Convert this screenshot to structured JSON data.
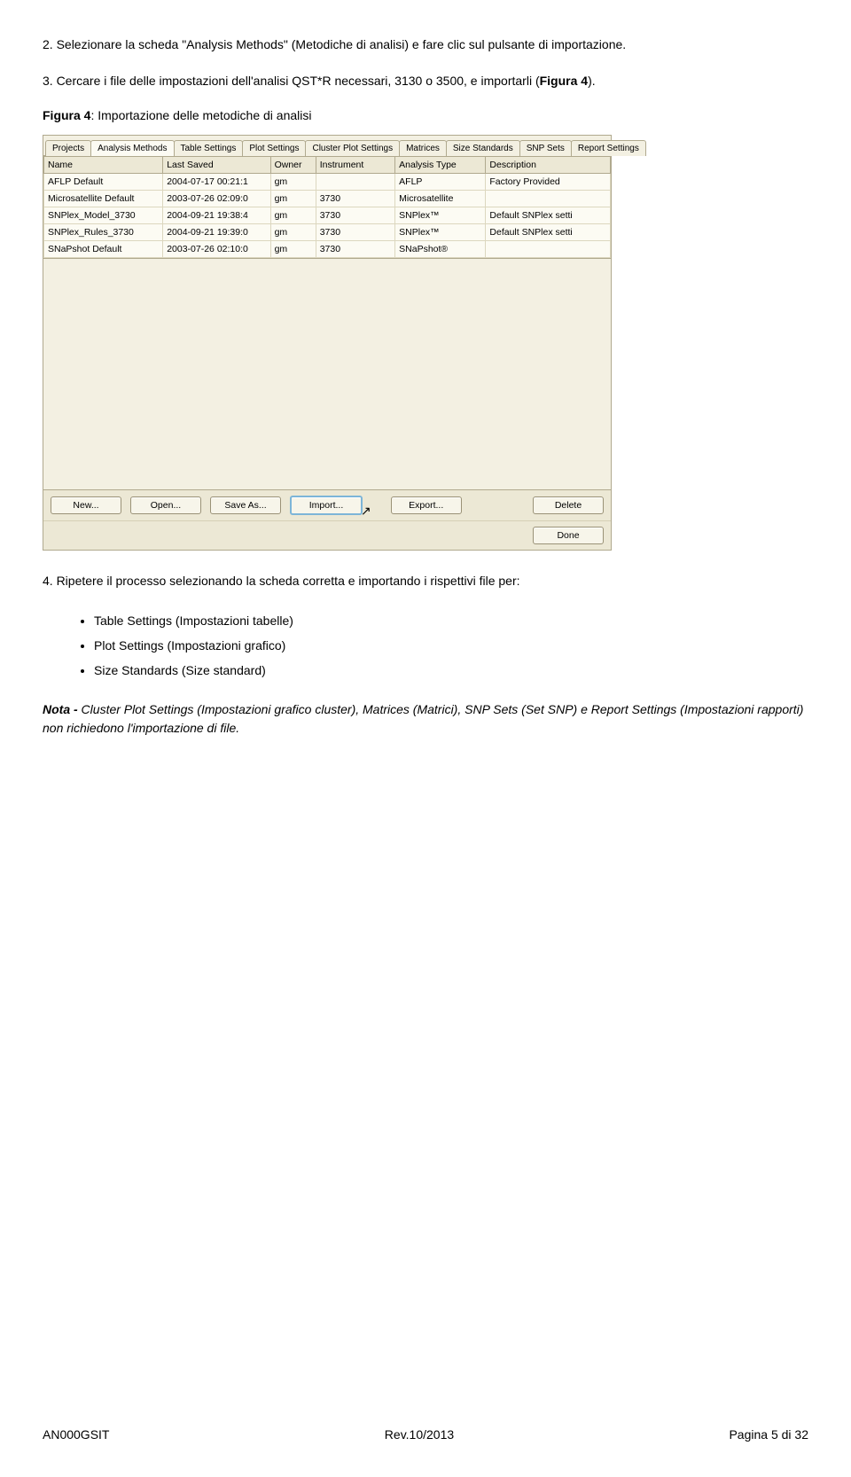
{
  "step2": "2. Selezionare la scheda \"Analysis Methods\" (Metodiche di analisi) e fare clic sul pulsante di importazione.",
  "step3_a": "3. Cercare i file delle impostazioni dell'analisi QST*R necessari, 3130 o 3500, e importarli (",
  "step3_bold": "Figura 4",
  "step3_b": ").",
  "figcap_bold": "Figura 4",
  "figcap_rest": ": Importazione delle metodiche di analisi",
  "screenshot": {
    "tabs": [
      "Projects",
      "Analysis Methods",
      "Table Settings",
      "Plot Settings",
      "Cluster Plot Settings",
      "Matrices",
      "Size Standards",
      "SNP Sets",
      "Report Settings"
    ],
    "active_tab": 1,
    "columns": [
      "Name",
      "Last Saved",
      "Owner",
      "Instrument",
      "Analysis Type",
      "Description"
    ],
    "col_widths": [
      "21%",
      "19%",
      "8%",
      "14%",
      "16%",
      "22%"
    ],
    "rows": [
      [
        "AFLP Default",
        "2004-07-17 00:21:1",
        "gm",
        "",
        "AFLP",
        "Factory Provided"
      ],
      [
        "Microsatellite Default",
        "2003-07-26 02:09:0",
        "gm",
        "3730",
        "Microsatellite",
        ""
      ],
      [
        "SNPlex_Model_3730",
        "2004-09-21 19:38:4",
        "gm",
        "3730",
        "SNPlex™",
        "Default SNPlex setti"
      ],
      [
        "SNPlex_Rules_3730",
        "2004-09-21 19:39:0",
        "gm",
        "3730",
        "SNPlex™",
        "Default SNPlex setti"
      ],
      [
        "SNaPshot Default",
        "2003-07-26 02:10:0",
        "gm",
        "3730",
        "SNaPshot®",
        ""
      ]
    ],
    "buttons": {
      "new": "New...",
      "open": "Open...",
      "saveas": "Save As...",
      "import": "Import...",
      "export": "Export...",
      "delete": "Delete",
      "done": "Done"
    }
  },
  "step4": "4. Ripetere il processo selezionando la scheda corretta e importando i rispettivi file per:",
  "bullets": [
    "Table Settings (Impostazioni tabelle)",
    "Plot Settings (Impostazioni grafico)",
    "Size Standards (Size standard)"
  ],
  "note_bold": "Nota -",
  "note_body": " Cluster Plot Settings (Impostazioni grafico cluster), Matrices (Matrici), SNP Sets (Set SNP) e Report Settings (Impostazioni rapporti) non richiedono l'importazione di file.",
  "footer": {
    "left": "AN000GSIT",
    "center": "Rev.10/2013",
    "right": "Pagina 5 di 32"
  }
}
